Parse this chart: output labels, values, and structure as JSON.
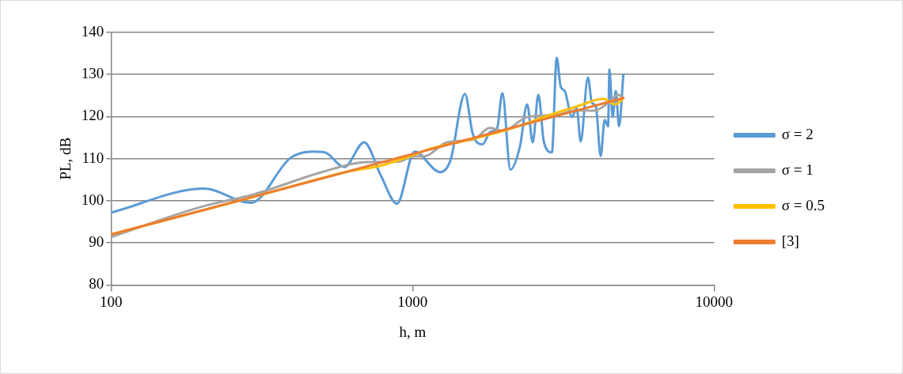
{
  "chart_data": {
    "type": "line",
    "xlabel": "h, m",
    "ylabel": "PL, dB",
    "log": "x",
    "xlim": [
      100,
      10000
    ],
    "xticks": [
      100,
      1000,
      10000
    ],
    "ylim": [
      80,
      140
    ],
    "yticks": [
      80,
      90,
      100,
      110,
      120,
      130,
      140
    ],
    "grid": "y",
    "legend": "right",
    "marker": "none",
    "line_style": "solid",
    "series": [
      {
        "name": "σ = 2",
        "color": "#5b9bd5",
        "x": [
          100,
          204,
          291,
          394,
          465,
          512,
          594,
          691,
          786,
          888,
          1016,
          1234,
          1336,
          1491,
          1585,
          1705,
          1813,
          1904,
          1986,
          2111,
          2272,
          2399,
          2504,
          2614,
          2728,
          2899,
          3006,
          3100,
          3196,
          3377,
          3503,
          3611,
          3815,
          3933,
          4055,
          4206,
          4336,
          4452,
          4497,
          4609,
          4722,
          4840,
          5000
        ],
        "values": [
          97.2,
          102.9,
          99.5,
          110.2,
          111.7,
          111.5,
          108.0,
          113.9,
          105.9,
          99.3,
          111.7,
          106.8,
          109.6,
          125.4,
          115.8,
          113.4,
          116.4,
          117.0,
          125.6,
          107.4,
          113.0,
          122.9,
          113.9,
          125.2,
          113.9,
          111.5,
          134.0,
          127.1,
          126.1,
          119.9,
          122.0,
          114.1,
          129.3,
          123.3,
          122.4,
          110.6,
          119.2,
          117.7,
          131.2,
          119.9,
          126.1,
          117.7,
          129.9
        ]
      },
      {
        "name": "σ = 1",
        "color": "#a5a5a5",
        "x": [
          100,
          200,
          300,
          500,
          700,
          900,
          1000,
          1100,
          1300,
          1600,
          1800,
          2000,
          2400,
          3000,
          3500,
          4000,
          4500,
          4800,
          5000
        ],
        "values": [
          91.4,
          98.6,
          101.6,
          106.8,
          109.2,
          109.3,
          110.5,
          110.6,
          113.9,
          114.6,
          117.3,
          116.6,
          119.9,
          120.4,
          121.5,
          121.4,
          123.5,
          125.2,
          124.5
        ]
      },
      {
        "name": "σ = 0.5",
        "color": "#ffc000",
        "x": [
          100,
          300,
          600,
          800,
          1000,
          1150,
          1500,
          2000,
          2500,
          2700,
          3500,
          4300,
          4700,
          5000
        ],
        "values": [
          92.0,
          101.0,
          106.8,
          108.5,
          110.8,
          112.4,
          114.3,
          116.6,
          118.9,
          119.8,
          122.4,
          124.2,
          122.9,
          124.3
        ]
      },
      {
        "name": "[3]",
        "color": "#ed7d31",
        "x": [
          100,
          200,
          500,
          1000,
          2000,
          5000
        ],
        "values": [
          92.0,
          97.7,
          105.3,
          111.1,
          116.8,
          124.4
        ]
      }
    ]
  }
}
